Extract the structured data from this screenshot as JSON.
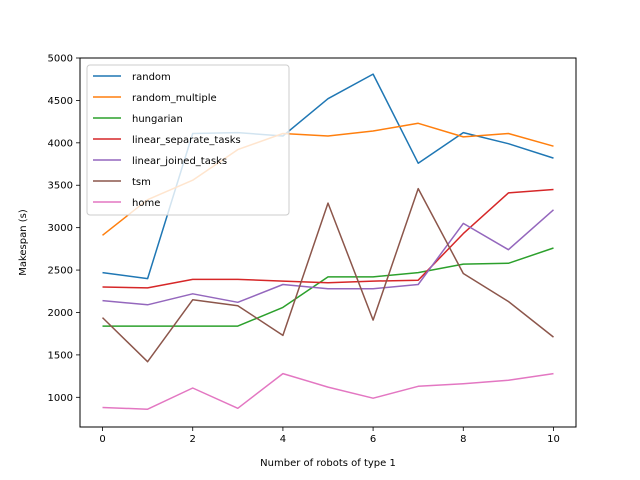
{
  "chart_data": {
    "type": "line",
    "title": "",
    "xlabel": "Number of robots of type 1",
    "ylabel": "Makespan (s)",
    "xlim": [
      -0.5,
      10.5
    ],
    "ylim": [
      650,
      5000
    ],
    "xticks": [
      0,
      2,
      4,
      6,
      8,
      10
    ],
    "yticks": [
      1000,
      1500,
      2000,
      2500,
      3000,
      3500,
      4000,
      4500,
      5000
    ],
    "grid": false,
    "legend_position": "top-left",
    "x": [
      0,
      1,
      2,
      3,
      4,
      5,
      6,
      7,
      8,
      9,
      10
    ],
    "series": [
      {
        "name": "random",
        "color": "#1f77b4",
        "values": [
          2470,
          2400,
          4110,
          4120,
          4080,
          4520,
          4810,
          3760,
          4120,
          3990,
          3820
        ]
      },
      {
        "name": "random_multiple",
        "color": "#ff7f0e",
        "values": [
          2910,
          3330,
          3560,
          3920,
          4110,
          4080,
          4140,
          4230,
          4070,
          4110,
          3960
        ]
      },
      {
        "name": "hungarian",
        "color": "#2ca02c",
        "values": [
          1840,
          1840,
          1840,
          1840,
          2060,
          2420,
          2420,
          2470,
          2570,
          2580,
          2760
        ]
      },
      {
        "name": "linear_separate_tasks",
        "color": "#d62728",
        "values": [
          2300,
          2290,
          2390,
          2390,
          2370,
          2350,
          2370,
          2380,
          2930,
          3410,
          3450
        ]
      },
      {
        "name": "linear_joined_tasks",
        "color": "#9467bd",
        "values": [
          2140,
          2090,
          2220,
          2120,
          2330,
          2280,
          2280,
          2330,
          3050,
          2740,
          3210
        ]
      },
      {
        "name": "tsm",
        "color": "#8c564b",
        "values": [
          1940,
          1420,
          2150,
          2080,
          1730,
          3290,
          1910,
          3460,
          2460,
          2130,
          1710
        ]
      },
      {
        "name": "home",
        "color": "#e377c2",
        "values": [
          880,
          860,
          1110,
          870,
          1280,
          1120,
          990,
          1130,
          1160,
          1200,
          1280
        ]
      }
    ]
  }
}
